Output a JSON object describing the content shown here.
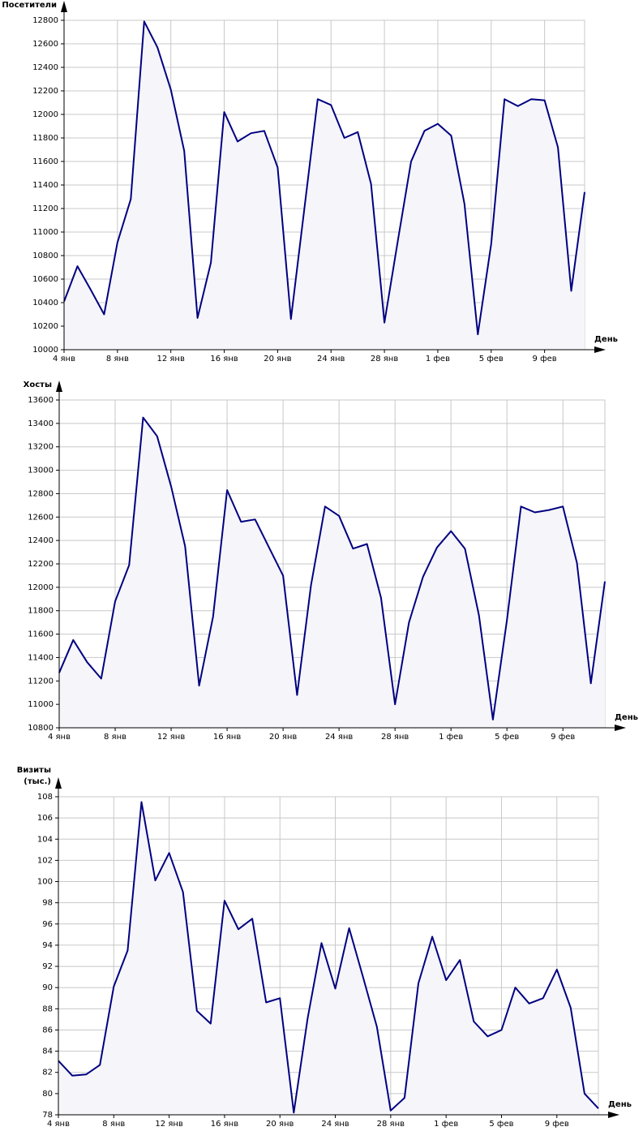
{
  "chart_data": [
    {
      "type": "line",
      "ylabel": [
        "Посетители"
      ],
      "xlabel": "День",
      "color": "#000080",
      "grid": true,
      "categories": [
        "4 янв",
        null,
        null,
        null,
        "8 янв",
        null,
        null,
        null,
        "12 янв",
        null,
        null,
        null,
        "16 янв",
        null,
        null,
        null,
        "20 янв",
        null,
        null,
        null,
        "24 янв",
        null,
        null,
        null,
        "28 янв",
        null,
        null,
        null,
        "1 фев",
        null,
        null,
        null,
        "5 фев",
        null,
        null,
        null,
        "9 фев",
        null,
        null,
        null
      ],
      "values": [
        10410,
        10710,
        10510,
        10300,
        10910,
        11280,
        12790,
        12570,
        12210,
        11690,
        10270,
        10740,
        12020,
        11770,
        11840,
        11860,
        11550,
        10260,
        11195,
        12130,
        12080,
        11800,
        11850,
        11410,
        10230,
        10920,
        11600,
        11860,
        11920,
        11820,
        11240,
        10130,
        10900,
        12130,
        12070,
        12130,
        12120,
        11720,
        10500,
        11340
      ],
      "ylim": [
        10000,
        12800
      ],
      "yticks": [
        10000,
        10200,
        10400,
        10600,
        10800,
        11000,
        11200,
        11400,
        11600,
        11800,
        12000,
        12200,
        12400,
        12600,
        12800
      ]
    },
    {
      "type": "line",
      "ylabel": [
        "Хосты"
      ],
      "xlabel": "День",
      "color": "#000080",
      "grid": true,
      "categories": [
        "4 янв",
        null,
        null,
        null,
        "8 янв",
        null,
        null,
        null,
        "12 янв",
        null,
        null,
        null,
        "16 янв",
        null,
        null,
        null,
        "20 янв",
        null,
        null,
        null,
        "24 янв",
        null,
        null,
        null,
        "28 янв",
        null,
        null,
        null,
        "1 фев",
        null,
        null,
        null,
        "5 фев",
        null,
        null,
        null,
        "9 фев",
        null,
        null,
        null
      ],
      "values": [
        11270,
        11550,
        11360,
        11220,
        11880,
        12190,
        13450,
        13290,
        12860,
        12350,
        11160,
        11750,
        12830,
        12560,
        12580,
        12340,
        12100,
        11080,
        12020,
        12690,
        12610,
        12330,
        12370,
        11910,
        11000,
        11700,
        12090,
        12340,
        12480,
        12330,
        11760,
        10870,
        11720,
        12690,
        12640,
        12660,
        12690,
        12210,
        11180,
        12050
      ],
      "ylim": [
        10800,
        13600
      ],
      "yticks": [
        10800,
        11000,
        11200,
        11400,
        11600,
        11800,
        12000,
        12200,
        12400,
        12600,
        12800,
        13000,
        13200,
        13400,
        13600
      ]
    },
    {
      "type": "line",
      "ylabel": [
        "Визиты",
        "(тыс.)"
      ],
      "xlabel": "День",
      "color": "#000080",
      "grid": true,
      "categories": [
        "4 янв",
        null,
        null,
        null,
        "8 янв",
        null,
        null,
        null,
        "12 янв",
        null,
        null,
        null,
        "16 янв",
        null,
        null,
        null,
        "20 янв",
        null,
        null,
        null,
        "24 янв",
        null,
        null,
        null,
        "28 янв",
        null,
        null,
        null,
        "1 фев",
        null,
        null,
        null,
        "5 фев",
        null,
        null,
        null,
        "9 фев",
        null,
        null,
        null
      ],
      "values": [
        83.1,
        81.7,
        81.8,
        82.7,
        90.1,
        93.5,
        107.5,
        100.1,
        102.7,
        99.0,
        87.8,
        86.6,
        98.2,
        95.5,
        96.5,
        88.6,
        89.0,
        78.2,
        87.1,
        94.2,
        89.9,
        95.6,
        91.0,
        86.3,
        78.4,
        79.6,
        90.4,
        94.8,
        90.7,
        92.6,
        86.8,
        85.4,
        86.0,
        90.0,
        88.5,
        89.0,
        91.7,
        88.1,
        80.0,
        78.6
      ],
      "ylim": [
        78,
        108
      ],
      "yticks": [
        78,
        80,
        82,
        84,
        86,
        88,
        90,
        92,
        94,
        96,
        98,
        100,
        102,
        104,
        106,
        108
      ]
    }
  ]
}
